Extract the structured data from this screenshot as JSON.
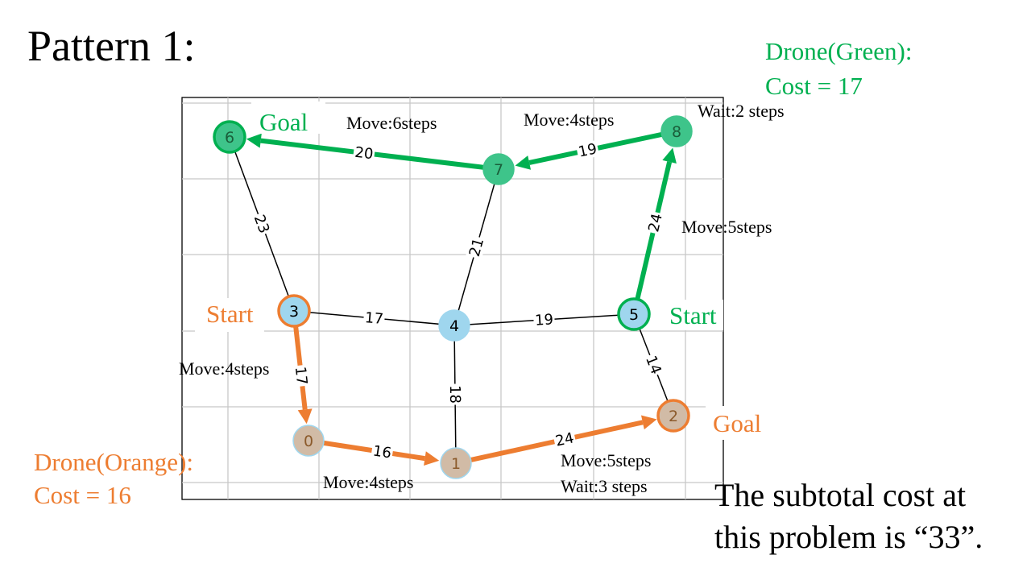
{
  "title": "Pattern 1:",
  "drone_green": {
    "label": "Drone(Green):",
    "cost": "Cost = 17",
    "color": "#00b050"
  },
  "drone_orange": {
    "label": "Drone(Orange):",
    "cost": "Cost = 16",
    "color": "#ed7d31"
  },
  "summary": {
    "line1": "The subtotal cost at",
    "line2": "this problem is “33”."
  },
  "annotations": {
    "green_goal": "Goal",
    "green_start": "Start",
    "orange_start": "Start",
    "orange_goal": "Goal",
    "move_6_7": "Move:6steps",
    "move_7_8": "Move:4steps",
    "wait_8": "Wait:2 steps",
    "move_5_8": "Move:5steps",
    "move_3_0": "Move:4steps",
    "move_0_1": "Move:4steps",
    "move_1_2": "Move:5steps",
    "wait_1_2": "Wait:3 steps"
  },
  "graph": {
    "nodes": [
      {
        "id": "0",
        "kind": "orange"
      },
      {
        "id": "1",
        "kind": "orange"
      },
      {
        "id": "2",
        "kind": "orange"
      },
      {
        "id": "3",
        "kind": "blue"
      },
      {
        "id": "4",
        "kind": "blue"
      },
      {
        "id": "5",
        "kind": "blue"
      },
      {
        "id": "6",
        "kind": "green"
      },
      {
        "id": "7",
        "kind": "green"
      },
      {
        "id": "8",
        "kind": "green"
      }
    ],
    "edges": [
      {
        "from": "6",
        "to": "3",
        "weight": "23"
      },
      {
        "from": "3",
        "to": "4",
        "weight": "17"
      },
      {
        "from": "4",
        "to": "5",
        "weight": "19"
      },
      {
        "from": "7",
        "to": "4",
        "weight": "21"
      },
      {
        "from": "4",
        "to": "1",
        "weight": "18"
      },
      {
        "from": "5",
        "to": "2",
        "weight": "14"
      },
      {
        "from": "7",
        "to": "6",
        "weight": "20"
      },
      {
        "from": "8",
        "to": "7",
        "weight": "19"
      },
      {
        "from": "5",
        "to": "8",
        "weight": "24"
      },
      {
        "from": "3",
        "to": "0",
        "weight": "17"
      },
      {
        "from": "0",
        "to": "1",
        "weight": "16"
      },
      {
        "from": "1",
        "to": "2",
        "weight": "24"
      }
    ],
    "paths": {
      "green": [
        "5",
        "8",
        "7",
        "6"
      ],
      "orange": [
        "3",
        "0",
        "1",
        "2"
      ]
    },
    "colors": {
      "blue_fill": "#9fd6ee",
      "green_fill": "#3ec48a",
      "orange_fill": "#d1bba6",
      "green_arrow": "#00b050",
      "orange_arrow": "#ed7d31",
      "grid": "#c8c8c8"
    }
  }
}
